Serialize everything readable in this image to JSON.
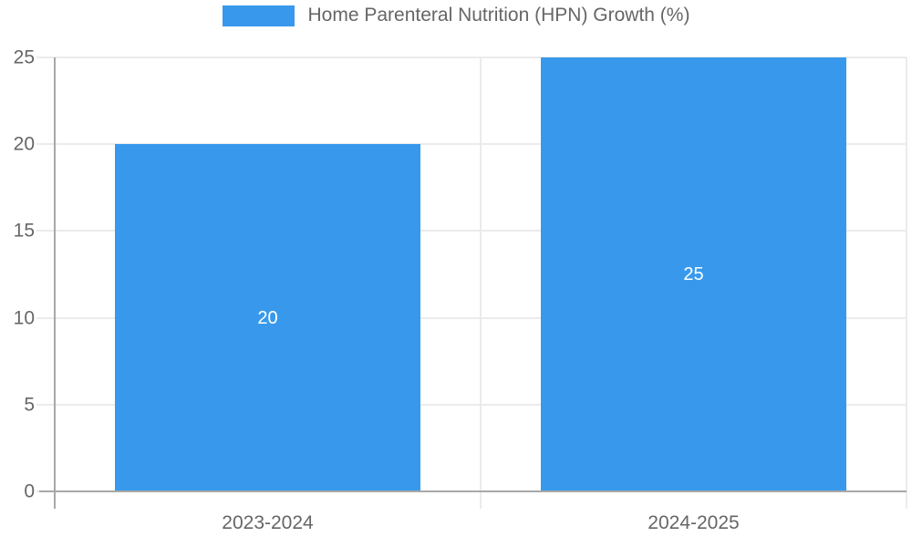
{
  "chart_data": {
    "type": "bar",
    "title": "",
    "legend": {
      "label": "Home Parenteral Nutrition (HPN) Growth (%)",
      "position": "top"
    },
    "categories": [
      "2023-2024",
      "2024-2025"
    ],
    "values": [
      20,
      25
    ],
    "data_labels": [
      "20",
      "25"
    ],
    "xlabel": "",
    "ylabel": "",
    "ylim": [
      0,
      25
    ],
    "yticks": [
      0,
      5,
      10,
      15,
      20,
      25
    ],
    "grid": true,
    "colors": {
      "bar": "#3899EC",
      "grid": "#ebebeb",
      "axis": "#a8a8a8",
      "tick_text": "#666666",
      "data_label_text": "#ffffff"
    }
  }
}
